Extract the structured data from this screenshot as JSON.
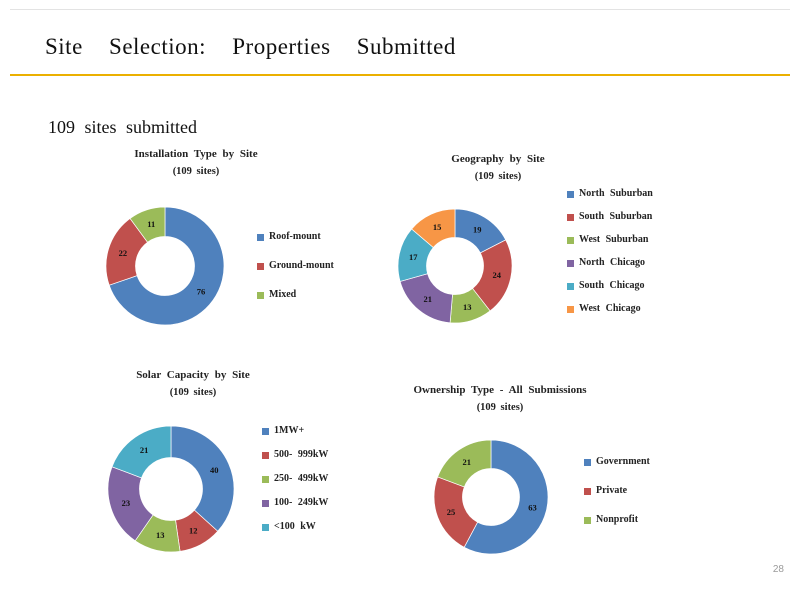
{
  "slide": {
    "title": "Site Selection: Properties Submitted",
    "subtitle": "109 sites submitted",
    "page_number": "28",
    "accent_line_color": "#EBB000"
  },
  "chart_data": [
    {
      "type": "pie",
      "variant": "donut",
      "title": "Installation Type by Site",
      "subtitle": "(109 sites)",
      "total": 109,
      "labels": [
        "Roof-mount",
        "Ground-mount",
        "Mixed"
      ],
      "values": [
        76,
        22,
        11
      ],
      "colors": [
        "#4F81BD",
        "#C0504D",
        "#9BBB59"
      ],
      "legend_position": "right",
      "start_angle": "top",
      "direction": "clockwise"
    },
    {
      "type": "pie",
      "variant": "donut",
      "title": "Geography by Site",
      "subtitle": "(109 sites)",
      "total": 109,
      "labels": [
        "North Suburban",
        "South Suburban",
        "West Suburban",
        "North Chicago",
        "South Chicago",
        "West Chicago"
      ],
      "values": [
        19,
        24,
        13,
        21,
        17,
        15
      ],
      "colors": [
        "#4F81BD",
        "#C0504D",
        "#9BBB59",
        "#8064A2",
        "#4BACC6",
        "#F79646"
      ],
      "legend_position": "right",
      "start_angle": "top",
      "direction": "clockwise"
    },
    {
      "type": "pie",
      "variant": "donut",
      "title": "Solar Capacity by Site",
      "subtitle": "(109 sites)",
      "total": 109,
      "labels": [
        "1MW+",
        "500- 999kW",
        "250- 499kW",
        "100- 249kW",
        "<100 kW"
      ],
      "values": [
        40,
        12,
        13,
        23,
        21
      ],
      "colors": [
        "#4F81BD",
        "#C0504D",
        "#9BBB59",
        "#8064A2",
        "#4BACC6"
      ],
      "legend_position": "right",
      "start_angle": "top",
      "direction": "clockwise"
    },
    {
      "type": "pie",
      "variant": "donut",
      "title": "Ownership Type - All Submissions",
      "subtitle": "(109 sites)",
      "total": 109,
      "labels": [
        "Government",
        "Private",
        "Nonprofit"
      ],
      "values": [
        63,
        25,
        21
      ],
      "colors": [
        "#4F81BD",
        "#C0504D",
        "#9BBB59"
      ],
      "legend_position": "right",
      "start_angle": "top",
      "direction": "clockwise"
    }
  ]
}
